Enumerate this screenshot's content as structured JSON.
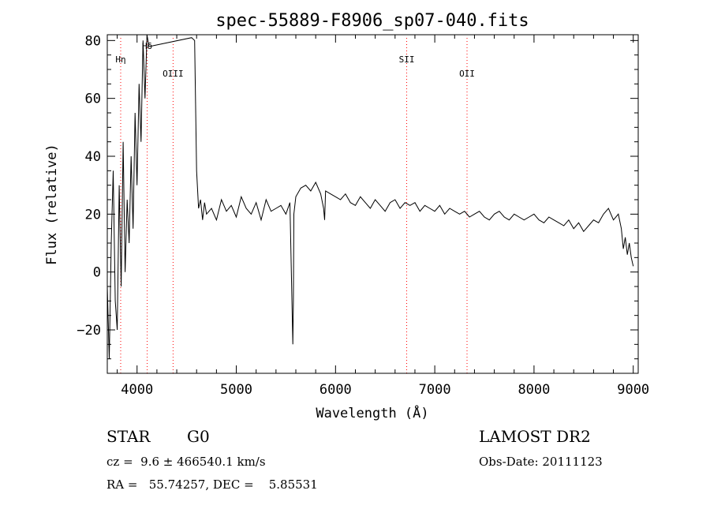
{
  "chart_data": {
    "type": "line",
    "title": "spec-55889-F8906_sp07-040.fits",
    "xlabel": "Wavelength (Å)",
    "ylabel": "Flux (relative)",
    "xlim": [
      3700,
      9050
    ],
    "ylim": [
      -35,
      82
    ],
    "xticks": [
      4000,
      5000,
      6000,
      7000,
      8000,
      9000
    ],
    "yticks": [
      -20,
      0,
      20,
      40,
      60,
      80
    ],
    "grid": false,
    "legend": "none",
    "line_color": "#000000",
    "marker_color": "#ff0000",
    "spectral_lines": [
      {
        "label": "Hη",
        "wavelength": 3835
      },
      {
        "label": "Hδ",
        "wavelength": 4102
      },
      {
        "label": "OIII",
        "wavelength": 4363
      },
      {
        "label": "SII",
        "wavelength": 6717
      },
      {
        "label": "OII",
        "wavelength": 7325
      }
    ],
    "series": [
      {
        "x": [
          3700,
          3720,
          3740,
          3760,
          3780,
          3800,
          3820,
          3840,
          3860,
          3880,
          3900,
          3920,
          3940,
          3960,
          3980,
          4000,
          4020,
          4040,
          4060,
          4080,
          4100,
          4120,
          4130,
          4550,
          4580,
          4600,
          4620,
          4640,
          4660,
          4680,
          4700,
          4750,
          4800,
          4850,
          4900,
          4950,
          5000,
          5050,
          5100,
          5150,
          5200,
          5250,
          5300,
          5350,
          5400,
          5450,
          5500,
          5540,
          5570,
          5575,
          5580,
          5600,
          5650,
          5700,
          5750,
          5800,
          5850,
          5880,
          5890,
          5900,
          5950,
          6000,
          6050,
          6100,
          6150,
          6200,
          6250,
          6300,
          6350,
          6400,
          6450,
          6500,
          6550,
          6600,
          6650,
          6700,
          6750,
          6800,
          6850,
          6900,
          6950,
          7000,
          7050,
          7100,
          7150,
          7200,
          7250,
          7300,
          7350,
          7400,
          7450,
          7500,
          7550,
          7600,
          7650,
          7700,
          7750,
          7800,
          7850,
          7900,
          7950,
          8000,
          8050,
          8100,
          8150,
          8200,
          8250,
          8300,
          8350,
          8400,
          8450,
          8500,
          8550,
          8600,
          8650,
          8700,
          8750,
          8800,
          8850,
          8880,
          8900,
          8920,
          8940,
          8960,
          8980,
          9000
        ],
        "y": [
          -5,
          -30,
          10,
          35,
          -10,
          -20,
          30,
          -5,
          45,
          0,
          25,
          10,
          40,
          15,
          55,
          30,
          65,
          45,
          80,
          60,
          82,
          78,
          78,
          81,
          80,
          35,
          22,
          25,
          18,
          24,
          20,
          22,
          18,
          25,
          21,
          23,
          19,
          26,
          22,
          20,
          24,
          18,
          25,
          21,
          22,
          23,
          20,
          24,
          -25,
          -10,
          20,
          26,
          29,
          30,
          28,
          31,
          27,
          22,
          18,
          28,
          27,
          26,
          25,
          27,
          24,
          23,
          26,
          24,
          22,
          25,
          23,
          21,
          24,
          25,
          22,
          24,
          23,
          24,
          21,
          23,
          22,
          21,
          23,
          20,
          22,
          21,
          20,
          21,
          19,
          20,
          21,
          19,
          18,
          20,
          21,
          19,
          18,
          20,
          19,
          18,
          19,
          20,
          18,
          17,
          19,
          18,
          17,
          16,
          18,
          15,
          17,
          14,
          16,
          18,
          17,
          20,
          22,
          18,
          20,
          15,
          8,
          12,
          6,
          10,
          5,
          2
        ]
      }
    ]
  },
  "info": {
    "classification": "STAR",
    "subclass": "G0",
    "survey": "LAMOST DR2",
    "redshift": "cz =  9.6 ± 466540.1 km/s",
    "obs_date": "Obs-Date: 20111123",
    "coords": "RA =   55.74257, DEC =    5.85531"
  }
}
